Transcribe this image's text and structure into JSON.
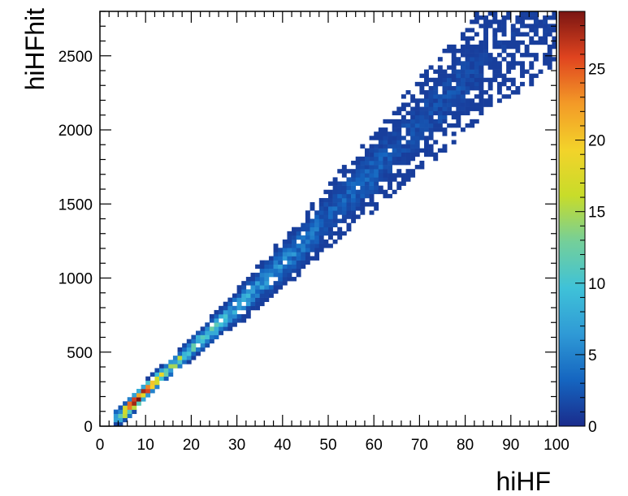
{
  "chart_data": {
    "type": "heatmap",
    "xlabel": "hiHF",
    "ylabel": "hiHFhit",
    "xlim": [
      0,
      100
    ],
    "ylim": [
      0,
      2800
    ],
    "x_ticks": [
      0,
      10,
      20,
      30,
      40,
      50,
      60,
      70,
      80,
      90,
      100
    ],
    "y_ticks": [
      0,
      500,
      1000,
      1500,
      2000,
      2500
    ],
    "bins": {
      "nx": 100,
      "ny": 100
    },
    "z_range": [
      0,
      29
    ],
    "z_ticks": [
      0,
      5,
      10,
      15,
      20,
      25
    ],
    "colormap": "rainbow",
    "colormap_stops": [
      "#1a2c8c",
      "#1565c0",
      "#2f9ad6",
      "#3fc2d8",
      "#74cf9a",
      "#c8dc2a",
      "#f3d32a",
      "#f39a27",
      "#e0441f",
      "#7a1512"
    ],
    "grid": false,
    "legend": "none",
    "band": {
      "description_values": "density ridge follows hiHFhit ≈ 27·hiHF, densest near hiHF 6–10",
      "points": [
        {
          "x": 4,
          "y": 60,
          "z": 6
        },
        {
          "x": 6,
          "y": 110,
          "z": 26
        },
        {
          "x": 8,
          "y": 180,
          "z": 29
        },
        {
          "x": 10,
          "y": 240,
          "z": 26
        },
        {
          "x": 12,
          "y": 300,
          "z": 20
        },
        {
          "x": 15,
          "y": 380,
          "z": 14
        },
        {
          "x": 20,
          "y": 520,
          "z": 11
        },
        {
          "x": 25,
          "y": 660,
          "z": 9
        },
        {
          "x": 30,
          "y": 800,
          "z": 7
        },
        {
          "x": 35,
          "y": 950,
          "z": 6
        },
        {
          "x": 40,
          "y": 1100,
          "z": 5
        },
        {
          "x": 45,
          "y": 1250,
          "z": 4
        },
        {
          "x": 50,
          "y": 1420,
          "z": 3
        },
        {
          "x": 55,
          "y": 1570,
          "z": 3
        },
        {
          "x": 60,
          "y": 1720,
          "z": 3
        },
        {
          "x": 65,
          "y": 1880,
          "z": 2
        },
        {
          "x": 70,
          "y": 2040,
          "z": 2
        },
        {
          "x": 75,
          "y": 2180,
          "z": 2
        },
        {
          "x": 80,
          "y": 2340,
          "z": 2
        },
        {
          "x": 85,
          "y": 2490,
          "z": 1
        },
        {
          "x": 90,
          "y": 2620,
          "z": 1
        },
        {
          "x": 95,
          "y": 2740,
          "z": 1
        }
      ]
    }
  }
}
